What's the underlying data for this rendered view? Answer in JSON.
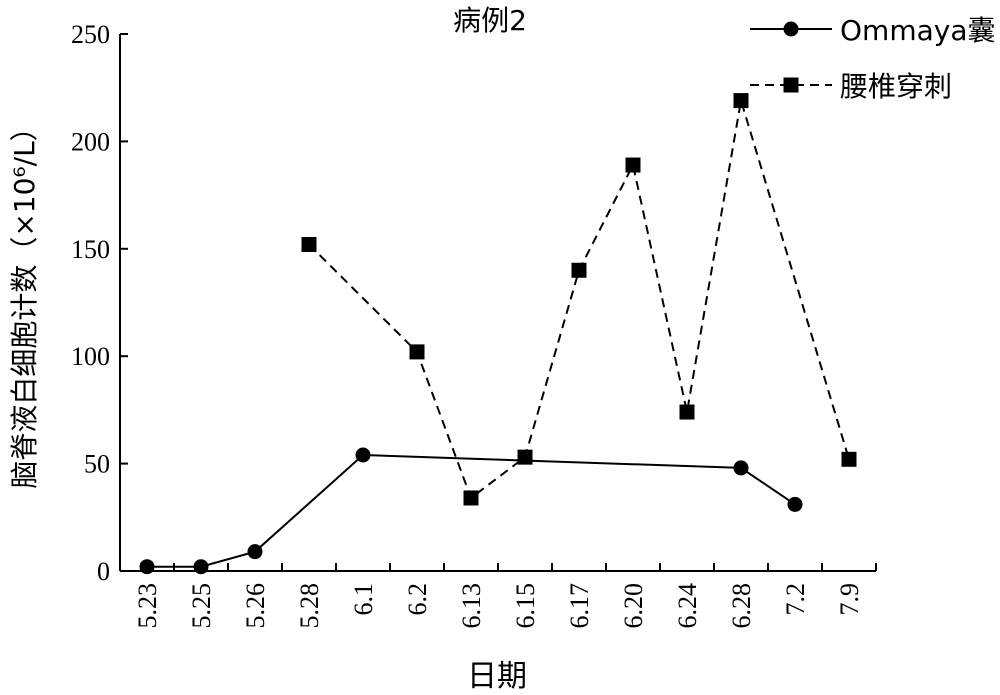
{
  "chart_data": {
    "type": "line",
    "title": "病例2",
    "xlabel": "日期",
    "ylabel": "脑脊液白细胞计数（×10⁶/L）",
    "categories": [
      "5.23",
      "5.25",
      "5.26",
      "5.28",
      "6.1",
      "6.2",
      "6.13",
      "6.15",
      "6.17",
      "6.20",
      "6.24",
      "6.28",
      "7.2",
      "7.9"
    ],
    "ylim": [
      0,
      250
    ],
    "yticks": [
      0,
      50,
      100,
      150,
      200,
      250
    ],
    "grid": false,
    "legend_position": "top-right",
    "series": [
      {
        "name": "Ommaya囊",
        "line_style": "solid",
        "marker": "circle",
        "color": "#000000",
        "values": [
          2,
          2,
          9,
          null,
          54,
          null,
          null,
          null,
          null,
          null,
          null,
          48,
          31,
          null
        ]
      },
      {
        "name": "腰椎穿刺",
        "line_style": "dashed",
        "marker": "square",
        "color": "#000000",
        "values": [
          null,
          null,
          null,
          152,
          null,
          102,
          34,
          53,
          140,
          189,
          74,
          219,
          null,
          52
        ]
      }
    ]
  }
}
